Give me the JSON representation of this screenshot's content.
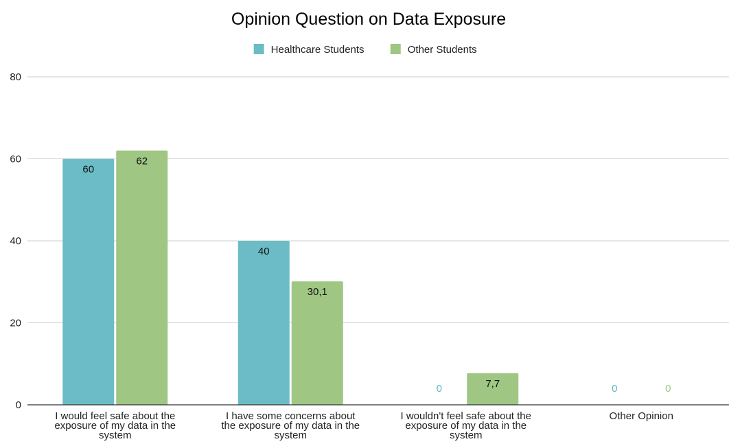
{
  "chart_data": {
    "type": "bar",
    "title": "Opinion Question on Data Exposure",
    "xlabel": "",
    "ylabel": "",
    "ylim": [
      0,
      80
    ],
    "yticks": [
      0,
      20,
      40,
      60,
      80
    ],
    "grid": true,
    "legend_position": "top",
    "categories": [
      [
        "I would feel safe about the",
        "exposure of my data in the",
        "system"
      ],
      [
        "I have some concerns about",
        "the exposure of my data in the",
        "system"
      ],
      [
        "I wouldn't feel safe about the",
        "exposure of my data in the",
        "system"
      ],
      [
        "Other Opinion"
      ]
    ],
    "series": [
      {
        "name": "Healthcare Students",
        "color": "#6bbcc6",
        "label_color": "#5bb3bf",
        "values": [
          60,
          40,
          0,
          0
        ],
        "labels": [
          "60",
          "40",
          "0",
          "0"
        ]
      },
      {
        "name": "Other Students",
        "color": "#9fc683",
        "label_color": "#9fc683",
        "values": [
          62,
          30.1,
          7.7,
          0
        ],
        "labels": [
          "62",
          "30,1",
          "7,7",
          "0"
        ]
      }
    ]
  }
}
